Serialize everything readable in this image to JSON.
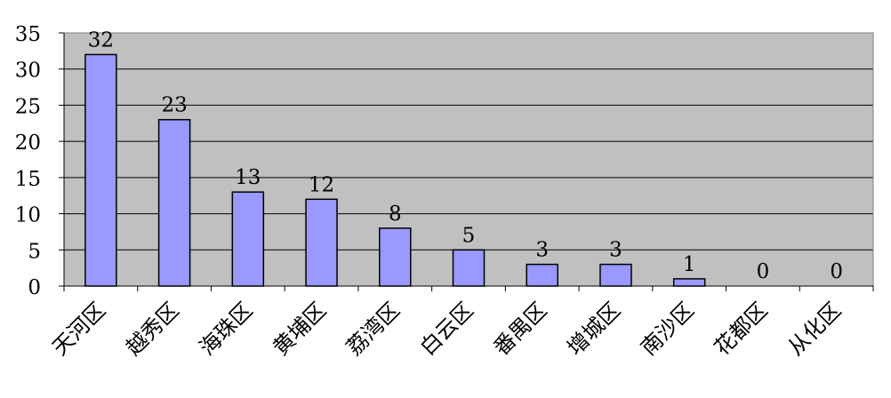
{
  "chart_data": {
    "type": "bar",
    "title": "",
    "xlabel": "",
    "ylabel": "",
    "categories": [
      "天河区",
      "越秀区",
      "海珠区",
      "黄埔区",
      "荔湾区",
      "白云区",
      "番禺区",
      "增城区",
      "南沙区",
      "花都区",
      "从化区"
    ],
    "values": [
      32,
      23,
      13,
      12,
      8,
      5,
      3,
      3,
      1,
      0,
      0
    ],
    "ylim": [
      0,
      35
    ],
    "yticks": [
      0,
      5,
      10,
      15,
      20,
      25,
      30,
      35
    ],
    "grid": true,
    "legend": "none",
    "data_labels": true,
    "colors": {
      "bar": "#9999ff",
      "plot_background": "#c0c0c0",
      "grid": "#000000"
    }
  }
}
